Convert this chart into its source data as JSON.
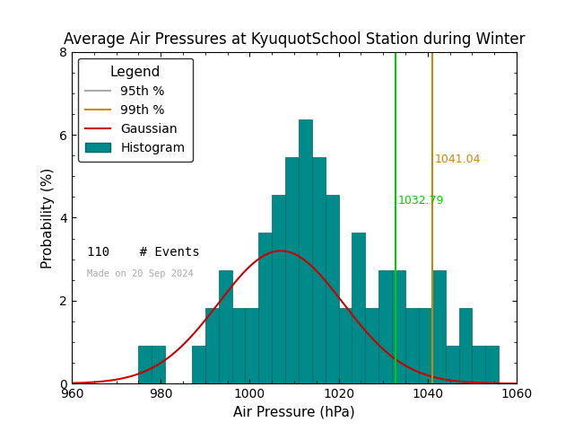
{
  "title": "Average Air Pressures at KyuquotSchool Station during Winter",
  "xlabel": "Air Pressure (hPa)",
  "ylabel": "Probability (%)",
  "xlim": [
    960,
    1060
  ],
  "ylim": [
    0,
    8
  ],
  "xticks": [
    960,
    980,
    1000,
    1020,
    1040,
    1060
  ],
  "yticks": [
    0,
    2,
    4,
    6,
    8
  ],
  "n_events": 110,
  "date_label": "Made on 20 Sep 2024",
  "percentile_95": 1032.79,
  "percentile_99": 1041.04,
  "bar_color": "#008B8B",
  "bar_edge_color": "#006666",
  "gaussian_color": "#cc0000",
  "p95_color": "#00cc00",
  "p99_color": "#cc8800",
  "background_color": "#ffffff",
  "bin_edges": [
    966,
    969,
    972,
    975,
    978,
    981,
    984,
    987,
    990,
    993,
    996,
    999,
    1002,
    1005,
    1008,
    1011,
    1014,
    1017,
    1020,
    1023,
    1026,
    1029,
    1032,
    1035,
    1038,
    1041,
    1044,
    1047,
    1050,
    1053,
    1056
  ],
  "bin_heights": [
    0.0,
    0.0,
    0.0,
    0.91,
    0.91,
    0.0,
    0.0,
    0.91,
    1.82,
    2.73,
    1.82,
    1.82,
    3.64,
    4.55,
    5.45,
    6.36,
    5.45,
    4.55,
    1.82,
    3.64,
    1.82,
    2.73,
    2.73,
    1.82,
    1.82,
    2.73,
    0.91,
    1.82,
    0.91,
    0.91
  ],
  "gauss_mean": 1007.0,
  "gauss_std": 14.0,
  "gauss_scale": 3.2,
  "title_fontsize": 12,
  "axis_fontsize": 11,
  "tick_fontsize": 10,
  "legend_fontsize": 10
}
